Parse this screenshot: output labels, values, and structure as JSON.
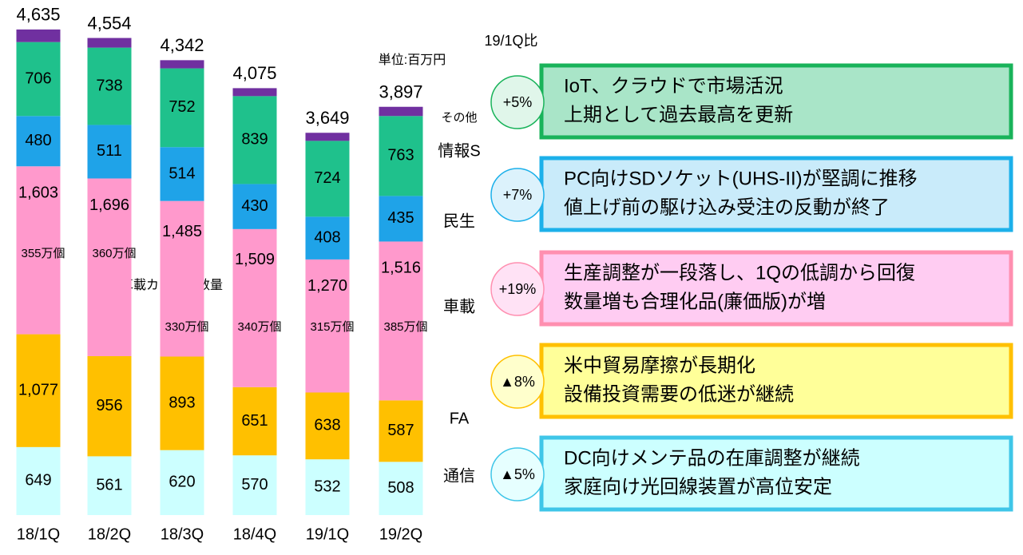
{
  "chart_data": {
    "type": "stacked_bar",
    "categories": [
      "18/1Q",
      "18/2Q",
      "18/3Q",
      "18/4Q",
      "19/1Q",
      "19/2Q"
    ],
    "series": [
      {
        "name": "通信",
        "color": "#ccffff",
        "values": [
          649,
          561,
          620,
          570,
          532,
          508
        ]
      },
      {
        "name": "FA",
        "color": "#ffc000",
        "values": [
          1077,
          956,
          893,
          651,
          638,
          587
        ],
        "value_labels": [
          "1,077",
          "956",
          "893",
          "651",
          "638",
          "587"
        ]
      },
      {
        "name": "車載",
        "color": "#ff99cc",
        "values": [
          1603,
          1696,
          1485,
          1509,
          1270,
          1516
        ],
        "value_labels": [
          "1,603",
          "1,696",
          "1,485",
          "1,509",
          "1,270",
          "1,516"
        ]
      },
      {
        "name": "民生",
        "color": "#1fa3e8",
        "values": [
          480,
          511,
          514,
          430,
          408,
          435
        ]
      },
      {
        "name": "情報S",
        "color": "#1fc18c",
        "values": [
          706,
          738,
          752,
          839,
          724,
          763
        ]
      },
      {
        "name": "その他",
        "color": "#7030a0",
        "values": [
          120,
          92,
          78,
          76,
          77,
          88
        ]
      }
    ],
    "totals": [
      4635,
      4554,
      4342,
      4075,
      3649,
      3897
    ],
    "total_labels": [
      "4,635",
      "4,554",
      "4,342",
      "4,075",
      "3,649",
      "3,897"
    ],
    "unit": "単位:百万円",
    "camera_label": "車載カメラ用数量",
    "camera_counts": [
      "355万個",
      "360万個",
      "330万個",
      "340万個",
      "315万個",
      "385万個"
    ],
    "ylim": [
      0,
      4700
    ]
  },
  "comparison": {
    "title": "19/1Q比",
    "items": [
      {
        "change": "+5%",
        "lines": [
          "IoT、クラウドで市場活況",
          "上期として過去最高を更新"
        ],
        "border": "#19b35a",
        "fill": "#a9e5c8",
        "circle_fill": "#e0f6ea"
      },
      {
        "change": "+7%",
        "lines": [
          "PC向けSDソケット(UHS-II)が堅調に推移",
          "値上げ前の駆け込み受注の反動が終了"
        ],
        "border": "#1cb0ea",
        "fill": "#c9ebfa",
        "circle_fill": "#dcf2fc"
      },
      {
        "change": "+19%",
        "lines": [
          "生産調整が一段落し、1Qの低調から回復",
          "数量増も合理化品(廉価版)が増"
        ],
        "border": "#ff8fb0",
        "fill": "#ffccf2",
        "circle_fill": "#ffe2f5"
      },
      {
        "change": "▲8%",
        "lines": [
          "米中貿易摩擦が長期化",
          "設備投資需要の低迷が継続"
        ],
        "border": "#ffc000",
        "fill": "#ffff99",
        "circle_fill": "#ffffcc"
      },
      {
        "change": "▲5%",
        "lines": [
          "DC向けメンテ品の在庫調整が継続",
          "家庭向け光回線装置が高位安定"
        ],
        "border": "#3fc6e8",
        "fill": "#ccffff",
        "circle_fill": "#e6ffff"
      }
    ]
  }
}
